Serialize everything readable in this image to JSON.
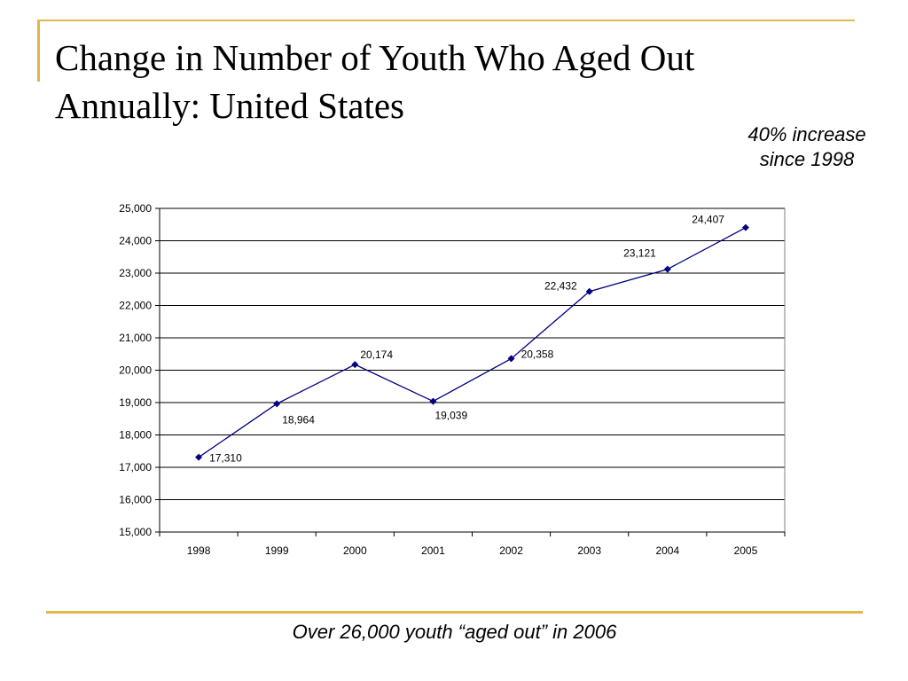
{
  "slide": {
    "title": "Change in Number of Youth Who Aged Out Annually: United States",
    "callout_line1": "40% increase",
    "callout_line2": "since 1998",
    "footer": "Over 26,000 youth “aged out” in 2006"
  },
  "colors": {
    "accent": "#E0B84A",
    "series": "#000080",
    "gridline": "#000000"
  },
  "chart_data": {
    "type": "line",
    "categories": [
      "1998",
      "1999",
      "2000",
      "2001",
      "2002",
      "2003",
      "2004",
      "2005"
    ],
    "series": [
      {
        "values": [
          17310,
          18964,
          20174,
          19039,
          20358,
          22432,
          23121,
          24407
        ],
        "labels": [
          "17,310",
          "18,964",
          "20,174",
          "19,039",
          "20,358",
          "22,432",
          "23,121",
          "24,407"
        ],
        "marker": "diamond"
      }
    ],
    "ylim": [
      15000,
      25000
    ],
    "yticks": [
      15000,
      16000,
      17000,
      18000,
      19000,
      20000,
      21000,
      22000,
      23000,
      24000,
      25000
    ],
    "ytick_labels": [
      "15,000",
      "16,000",
      "17,000",
      "18,000",
      "19,000",
      "20,000",
      "21,000",
      "22,000",
      "23,000",
      "24,000",
      "25,000"
    ],
    "grid": true,
    "legend": "none"
  }
}
